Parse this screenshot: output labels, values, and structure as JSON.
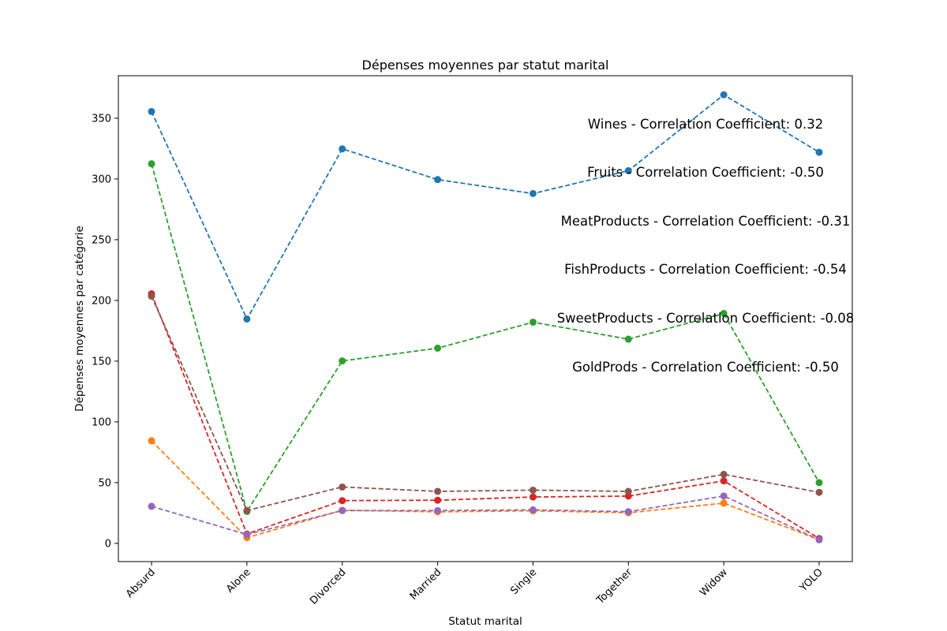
{
  "chart_data": {
    "type": "line",
    "title": "Dépenses moyennes par statut marital",
    "xlabel": "Statut marital",
    "ylabel": "Dépenses moyennes par catégorie",
    "categories": [
      "Absurd",
      "Alone",
      "Divorced",
      "Married",
      "Single",
      "Together",
      "Widow",
      "YOLO"
    ],
    "ylim": [
      -15,
      385
    ],
    "yticks": [
      0,
      50,
      100,
      150,
      200,
      250,
      300,
      350
    ],
    "grid": false,
    "line_style": "dashed",
    "marker": "circle",
    "series": [
      {
        "color": "#1f77b4",
        "values": [
          355.5,
          184.7,
          324.8,
          299.5,
          288.0,
          306.8,
          369.3,
          322.0
        ]
      },
      {
        "color": "#ff7f0e",
        "values": [
          84.5,
          4.7,
          27.3,
          26.0,
          26.8,
          25.2,
          33.1,
          3.0
        ]
      },
      {
        "color": "#2ca02c",
        "values": [
          312.5,
          26.3,
          150.2,
          160.7,
          182.1,
          168.1,
          189.3,
          50.0
        ]
      },
      {
        "color": "#d62728",
        "values": [
          205.5,
          7.7,
          35.2,
          35.5,
          38.2,
          38.9,
          51.4,
          4.0
        ]
      },
      {
        "color": "#9467bd",
        "values": [
          30.5,
          7.3,
          27.0,
          27.0,
          27.6,
          26.1,
          39.0,
          3.0
        ]
      },
      {
        "color": "#8c564b",
        "values": [
          203.5,
          27.0,
          46.4,
          42.8,
          43.8,
          42.8,
          56.8,
          42.0
        ]
      }
    ],
    "annotations": [
      "Wines - Correlation Coefficient: 0.32",
      "Fruits - Correlation Coefficient: -0.50",
      "MeatProducts - Correlation Coefficient: -0.31",
      "FishProducts - Correlation Coefficient: -0.54",
      "SweetProducts - Correlation Coefficient: -0.08",
      "GoldProds - Correlation Coefficient: -0.50"
    ]
  }
}
